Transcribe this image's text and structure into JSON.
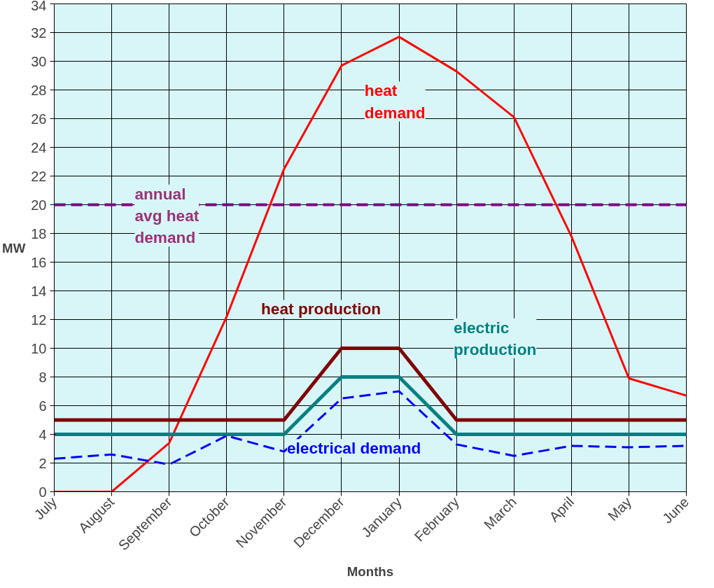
{
  "chart_data": {
    "type": "line",
    "xlabel": "Months",
    "ylabel": "MW",
    "categories": [
      "July",
      "August",
      "September",
      "October",
      "November",
      "December",
      "January",
      "February",
      "March",
      "April",
      "May",
      "June"
    ],
    "series": [
      {
        "name": "heat demand",
        "color": "#ff0000",
        "line_style": "solid",
        "values": [
          0,
          0,
          3.4,
          12.2,
          22.5,
          29.7,
          31.7,
          29.3,
          26.1,
          17.8,
          7.9,
          6.7
        ]
      },
      {
        "name": "heat production",
        "color": "#800000",
        "line_style": "solid",
        "values": [
          5,
          5,
          5,
          5,
          5,
          10,
          10,
          5,
          5,
          5,
          5,
          5
        ]
      },
      {
        "name": "electric production",
        "color": "#008080",
        "line_style": "solid",
        "values": [
          4,
          4,
          4,
          4,
          4,
          8,
          8,
          4,
          4,
          4,
          4,
          4
        ]
      },
      {
        "name": "electrical demand",
        "color": "#0000ff",
        "line_style": "dashed",
        "values": [
          2.3,
          2.6,
          1.9,
          3.9,
          2.8,
          6.5,
          7.0,
          3.3,
          2.5,
          3.2,
          3.1,
          3.2
        ]
      }
    ],
    "ref_lines": [
      {
        "axis": "y",
        "value": 20,
        "label": "annual\navg heat\ndemand",
        "color": "#800080",
        "line_style": "dashed"
      }
    ],
    "ylim": [
      0,
      34
    ],
    "yticks": [
      0,
      2,
      4,
      6,
      8,
      10,
      12,
      14,
      16,
      18,
      20,
      22,
      24,
      26,
      28,
      30,
      32,
      34
    ],
    "grid": true,
    "marker": "none"
  }
}
